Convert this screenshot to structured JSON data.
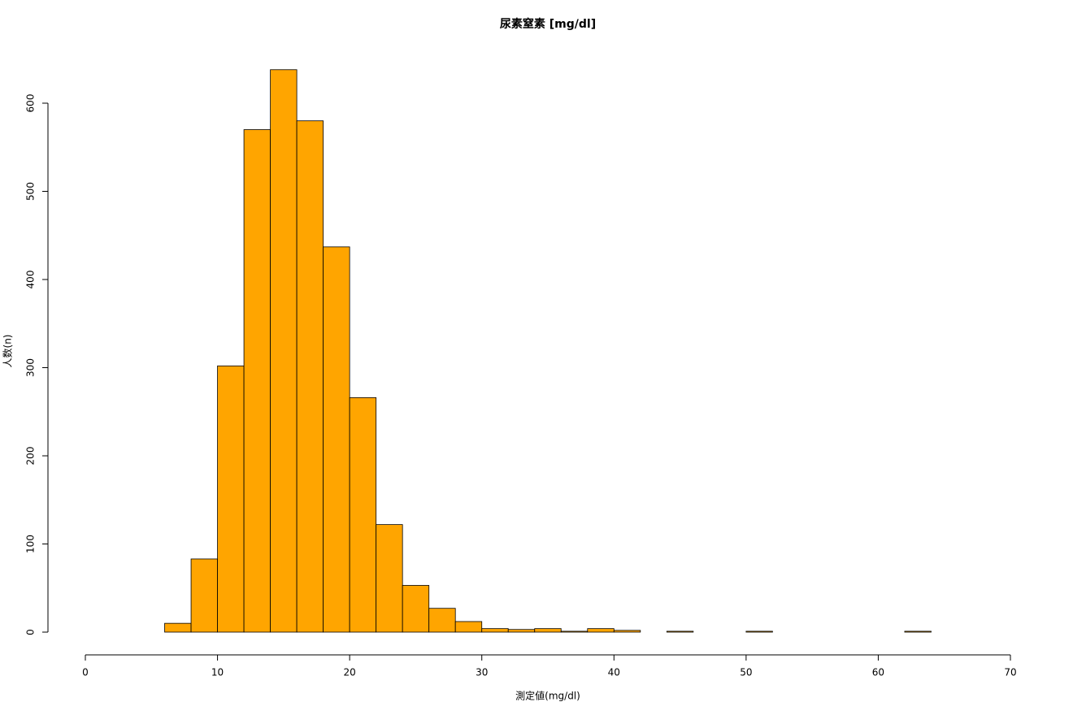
{
  "chart_data": {
    "type": "histogram",
    "title": "尿素窒素 [mg/dl]",
    "x_label": "測定値(mg/dl)",
    "y_label": "人数(n)",
    "bins": [
      6,
      8,
      10,
      12,
      14,
      16,
      18,
      20,
      22,
      24,
      26,
      28,
      30,
      32,
      34,
      36,
      38,
      40,
      42,
      44,
      46,
      48,
      50,
      52,
      54,
      56,
      58,
      60,
      62,
      64
    ],
    "values": [
      10,
      83,
      302,
      570,
      638,
      580,
      437,
      266,
      122,
      53,
      27,
      12,
      4,
      3,
      4,
      1,
      4,
      2,
      0,
      1,
      0,
      0,
      1,
      0,
      0,
      0,
      0,
      0,
      1
    ],
    "color": "#ffa500",
    "xlim": [
      0,
      70
    ],
    "xticks": [
      0,
      10,
      20,
      30,
      40,
      50,
      60,
      70
    ],
    "ylim": [
      0,
      600
    ],
    "yticks": [
      0,
      100,
      200,
      300,
      400,
      500,
      600
    ]
  }
}
